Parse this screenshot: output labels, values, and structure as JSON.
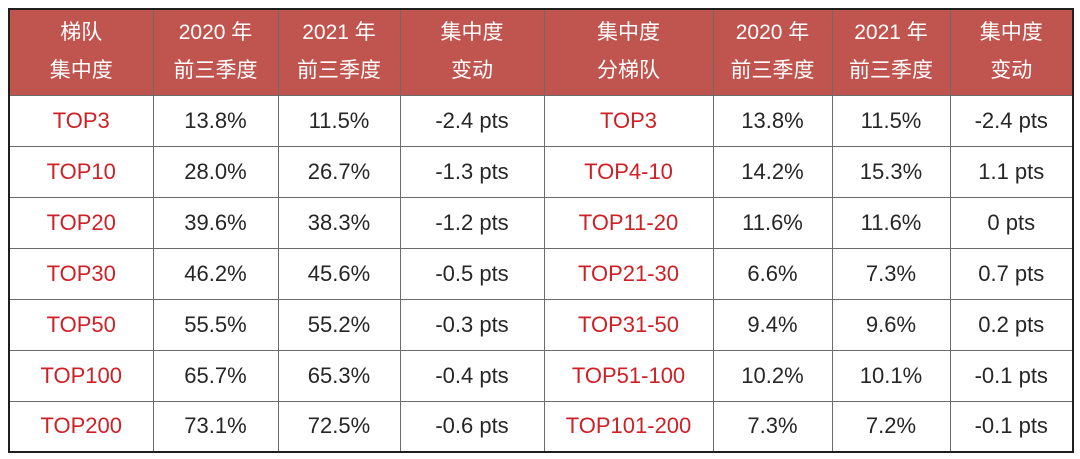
{
  "colors": {
    "header_bg": "#c0544f",
    "header_text": "#ffffff",
    "tier_text": "#ce2127",
    "value_text": "#262626",
    "grid_line": "#6b6b6b",
    "outer_border": "#1f1f1f",
    "page_bg": "#ffffff"
  },
  "chart_data": {
    "type": "table",
    "title": "",
    "columns": [
      "梯队集中度",
      "2020 年前三季度",
      "2021 年前三季度",
      "集中度变动",
      "集中度分梯队",
      "2020 年前三季度",
      "2021 年前三季度",
      "集中度变动"
    ],
    "header_lines": [
      [
        "梯队",
        "集中度"
      ],
      [
        "2020 年",
        "前三季度"
      ],
      [
        "2021 年",
        "前三季度"
      ],
      [
        "集中度",
        "变动"
      ],
      [
        "集中度",
        "分梯队"
      ],
      [
        "2020 年",
        "前三季度"
      ],
      [
        "2021 年",
        "前三季度"
      ],
      [
        "集中度",
        "变动"
      ]
    ],
    "rows": [
      [
        "TOP3",
        "13.8%",
        "11.5%",
        "-2.4 pts",
        "TOP3",
        "13.8%",
        "11.5%",
        "-2.4 pts"
      ],
      [
        "TOP10",
        "28.0%",
        "26.7%",
        "-1.3 pts",
        "TOP4-10",
        "14.2%",
        "15.3%",
        "1.1 pts"
      ],
      [
        "TOP20",
        "39.6%",
        "38.3%",
        "-1.2 pts",
        "TOP11-20",
        "11.6%",
        "11.6%",
        "0 pts"
      ],
      [
        "TOP30",
        "46.2%",
        "45.6%",
        "-0.5 pts",
        "TOP21-30",
        "6.6%",
        "7.3%",
        "0.7 pts"
      ],
      [
        "TOP50",
        "55.5%",
        "55.2%",
        "-0.3 pts",
        "TOP31-50",
        "9.4%",
        "9.6%",
        "0.2 pts"
      ],
      [
        "TOP100",
        "65.7%",
        "65.3%",
        "-0.4 pts",
        "TOP51-100",
        "10.2%",
        "10.1%",
        "-0.1 pts"
      ],
      [
        "TOP200",
        "73.1%",
        "72.5%",
        "-0.6 pts",
        "TOP101-200",
        "7.3%",
        "7.2%",
        "-0.1 pts"
      ]
    ]
  }
}
